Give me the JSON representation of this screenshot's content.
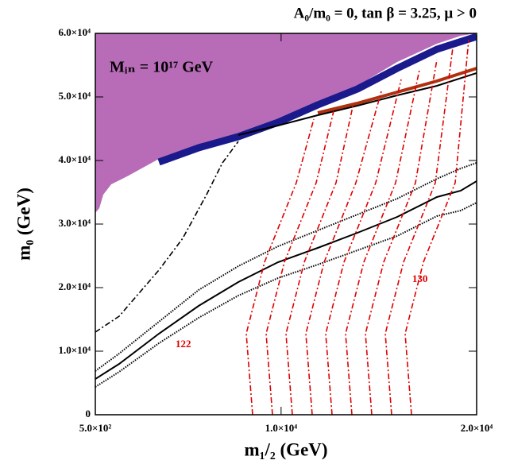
{
  "chart_data": {
    "type": "contour",
    "title": "A₀/m₀ = 0, tan β = 3.25, μ > 0",
    "xlabel": "m₁/₂ (GeV)",
    "ylabel": "m₀ (GeV)",
    "annotation": "Mᵢₙ = 10¹⁷ GeV",
    "contour_labels": [
      {
        "text": "122",
        "x": 5000,
        "y": 11000
      },
      {
        "text": "130",
        "x": 17100,
        "y": 21250
      }
    ],
    "xlim": [
      500,
      20000
    ],
    "ylim": [
      0,
      60000
    ],
    "xticks": [
      {
        "value": 500,
        "label": "5.0×10²"
      },
      {
        "value": 10000,
        "label": "1.0×10⁴"
      },
      {
        "value": 20000,
        "label": "2.0×10⁴"
      }
    ],
    "yticks": [
      0,
      {
        "value": 10000,
        "label": "1.0×10⁴"
      },
      {
        "value": 20000,
        "label": "2.0×10⁴"
      },
      {
        "value": 30000,
        "label": "3.0×10⁴"
      },
      {
        "value": 40000,
        "label": "4.0×10⁴"
      },
      {
        "value": 50000,
        "label": "5.0×10⁴"
      },
      {
        "value": 60000,
        "label": "6.0×10⁴"
      }
    ],
    "series": [
      {
        "style": "area",
        "color": "#b86cb8",
        "x": [
          500,
          703,
          906,
          1313,
          2125,
          3750,
          5781,
          7813,
          9844,
          11875,
          13906,
          15938,
          17969,
          19188,
          20000
        ],
        "y": [
          31750,
          32500,
          34625,
          36250,
          37500,
          40250,
          42375,
          44250,
          46500,
          49250,
          51750,
          55500,
          58375,
          59625,
          60000
        ]
      },
      {
        "style": "band",
        "color": "#1a1a8c",
        "x": [
          3750,
          5781,
          7813,
          9844,
          11875,
          13906,
          15938,
          17969,
          20000
        ],
        "y": [
          39750,
          42000,
          43750,
          46000,
          48750,
          51250,
          54500,
          57500,
          59500
        ]
      },
      {
        "style": "band-thin",
        "color": "#b03010",
        "x": [
          11875,
          13906,
          15938,
          17969,
          20000
        ],
        "y": [
          47500,
          49000,
          50750,
          52500,
          54500
        ]
      },
      {
        "style": "solid",
        "color": "#000000",
        "x": [
          7813,
          9844,
          11875,
          13906,
          15938,
          17969,
          20000
        ],
        "y": [
          44000,
          45500,
          47125,
          48625,
          50250,
          51750,
          53750
        ]
      },
      {
        "style": "solid",
        "color": "#000000",
        "x": [
          500,
          1719,
          3750,
          5781,
          7813,
          9844,
          11875,
          13906,
          15938,
          17969,
          19188,
          20000
        ],
        "y": [
          5625,
          8000,
          12750,
          17125,
          20875,
          24000,
          26250,
          28625,
          31125,
          34250,
          35250,
          36750
        ]
      },
      {
        "style": "dotted",
        "color": "#000000",
        "x": [
          500,
          1719,
          3750,
          5781,
          7813,
          9844,
          11875,
          13906,
          15938,
          17969,
          19188,
          20000
        ],
        "y": [
          6875,
          9625,
          14625,
          19625,
          23375,
          26500,
          29000,
          31500,
          34000,
          37125,
          38750,
          39625
        ]
      },
      {
        "style": "dotted",
        "color": "#000000",
        "x": [
          500,
          1719,
          3750,
          5781,
          7813,
          9844,
          11875,
          13906,
          15938,
          17969,
          19188,
          20000
        ],
        "y": [
          4375,
          6750,
          11250,
          15250,
          18750,
          21500,
          23625,
          25875,
          28125,
          31250,
          32125,
          33375
        ]
      },
      {
        "style": "dashdot",
        "color": "#000000",
        "x": [
          500,
          1719,
          3750,
          4969,
          6188,
          7000,
          7813
        ],
        "y": [
          13000,
          15500,
          22750,
          27750,
          34625,
          39625,
          43000
        ]
      },
      {
        "style": "dashdot",
        "color": "#e00000",
        "x": [
          8544,
          8219,
          9153,
          10778,
          11672
        ],
        "y": [
          0,
          12750,
          24000,
          36500,
          46500
        ]
      },
      {
        "style": "dashdot",
        "color": "#e00000",
        "x": [
          9559,
          9234,
          10169,
          11794,
          12688
        ],
        "y": [
          0,
          12750,
          24000,
          36500,
          47750
        ]
      },
      {
        "style": "dashdot",
        "color": "#e00000",
        "x": [
          10575,
          10250,
          11184,
          12809,
          13703
        ],
        "y": [
          0,
          12750,
          24000,
          36500,
          49000
        ]
      },
      {
        "style": "dashdot",
        "color": "#e00000",
        "x": [
          11591,
          11266,
          12200,
          13825,
          15125
        ],
        "y": [
          0,
          12750,
          24000,
          36500,
          50875
        ]
      },
      {
        "style": "dashdot",
        "color": "#e00000",
        "x": [
          12606,
          12281,
          13216,
          14841,
          16141
        ],
        "y": [
          0,
          12750,
          24000,
          36500,
          52750
        ]
      },
      {
        "style": "dashdot",
        "color": "#e00000",
        "x": [
          13622,
          13297,
          14231,
          15856,
          17075
        ],
        "y": [
          0,
          12750,
          24000,
          36500,
          54250
        ]
      },
      {
        "style": "dashdot",
        "color": "#e00000",
        "x": [
          14638,
          14313,
          15247,
          16872,
          17969
        ],
        "y": [
          0,
          12750,
          24000,
          36500,
          55875
        ]
      },
      {
        "style": "dashdot",
        "color": "#e00000",
        "x": [
          15653,
          15328,
          16263,
          17888,
          18781
        ],
        "y": [
          0,
          12750,
          24000,
          36500,
          57750
        ]
      },
      {
        "style": "dashdot",
        "color": "#e00000",
        "x": [
          16669,
          16344,
          17278,
          18903,
          19594
        ],
        "y": [
          0,
          12750,
          24000,
          36500,
          59000
        ]
      }
    ]
  }
}
